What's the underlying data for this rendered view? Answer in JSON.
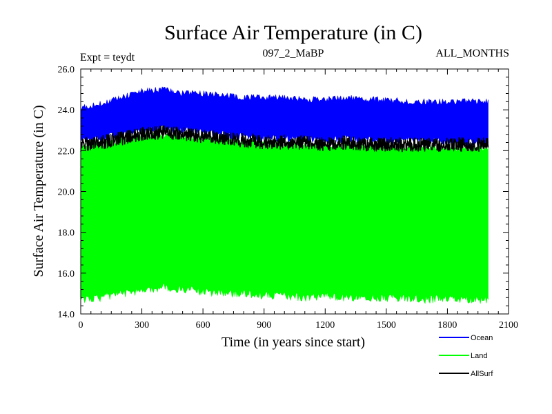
{
  "chart_data": {
    "type": "line",
    "title": "Surface Air Temperature (in C)",
    "expt_label": "Expt = teydt",
    "run_label": "097_2_MaBP",
    "months_label": "ALL_MONTHS",
    "xlabel": "Time (in years since start)",
    "ylabel": "Surface Air Temperature (in C)",
    "xlim": [
      0,
      2100
    ],
    "ylim": [
      14.0,
      26.0
    ],
    "x_ticks": [
      0,
      300,
      600,
      900,
      1200,
      1500,
      1800,
      2100
    ],
    "x_tick_labels": [
      "0",
      "300",
      "600",
      "900",
      "1200",
      "1500",
      "1800",
      "2100"
    ],
    "y_ticks": [
      14.0,
      16.0,
      18.0,
      20.0,
      22.0,
      24.0,
      26.0
    ],
    "y_tick_labels": [
      "14.0",
      "16.0",
      "18.0",
      "20.0",
      "22.0",
      "24.0",
      "26.0"
    ],
    "x_range_data": [
      0,
      2000
    ],
    "series": [
      {
        "name": "Ocean",
        "color": "#0000ff",
        "band": true,
        "x": [
          0,
          100,
          200,
          300,
          400,
          500,
          600,
          700,
          800,
          900,
          1000,
          1100,
          1200,
          1300,
          1400,
          1500,
          1600,
          1700,
          1800,
          1900,
          2000
        ],
        "upper": [
          24.1,
          24.3,
          24.6,
          24.9,
          25.0,
          24.8,
          24.8,
          24.7,
          24.6,
          24.6,
          24.6,
          24.5,
          24.5,
          24.6,
          24.5,
          24.5,
          24.4,
          24.4,
          24.4,
          24.4,
          24.4
        ],
        "lower": [
          22.5,
          22.6,
          22.8,
          23.0,
          23.1,
          23.0,
          22.9,
          22.8,
          22.7,
          22.6,
          22.6,
          22.6,
          22.5,
          22.6,
          22.5,
          22.5,
          22.5,
          22.5,
          22.4,
          22.4,
          22.4
        ]
      },
      {
        "name": "Land",
        "color": "#00ff00",
        "band": true,
        "x": [
          0,
          100,
          200,
          300,
          400,
          500,
          600,
          700,
          800,
          900,
          1000,
          1100,
          1200,
          1300,
          1400,
          1500,
          1600,
          1700,
          1800,
          1900,
          2000
        ],
        "upper": [
          22.2,
          22.3,
          22.5,
          22.7,
          22.8,
          22.7,
          22.6,
          22.5,
          22.4,
          22.4,
          22.3,
          22.3,
          22.2,
          22.3,
          22.2,
          22.2,
          22.2,
          22.2,
          22.1,
          22.1,
          22.1
        ],
        "lower": [
          14.7,
          14.8,
          15.0,
          15.1,
          15.3,
          15.2,
          15.1,
          15.0,
          15.0,
          14.9,
          14.9,
          14.8,
          14.9,
          14.8,
          14.8,
          14.8,
          14.8,
          14.7,
          14.8,
          14.7,
          14.7
        ]
      },
      {
        "name": "AllSurf",
        "color": "#000000",
        "band": false,
        "x": [
          0,
          100,
          200,
          300,
          400,
          500,
          600,
          700,
          800,
          900,
          1000,
          1100,
          1200,
          1300,
          1400,
          1500,
          1600,
          1700,
          1800,
          1900,
          2000
        ],
        "values": [
          22.3,
          22.4,
          22.6,
          22.8,
          22.9,
          22.8,
          22.7,
          22.6,
          22.5,
          22.4,
          22.4,
          22.4,
          22.3,
          22.4,
          22.3,
          22.3,
          22.3,
          22.3,
          22.3,
          22.3,
          22.3
        ],
        "spread": 0.35
      }
    ],
    "legend_position": "bottom-right"
  }
}
